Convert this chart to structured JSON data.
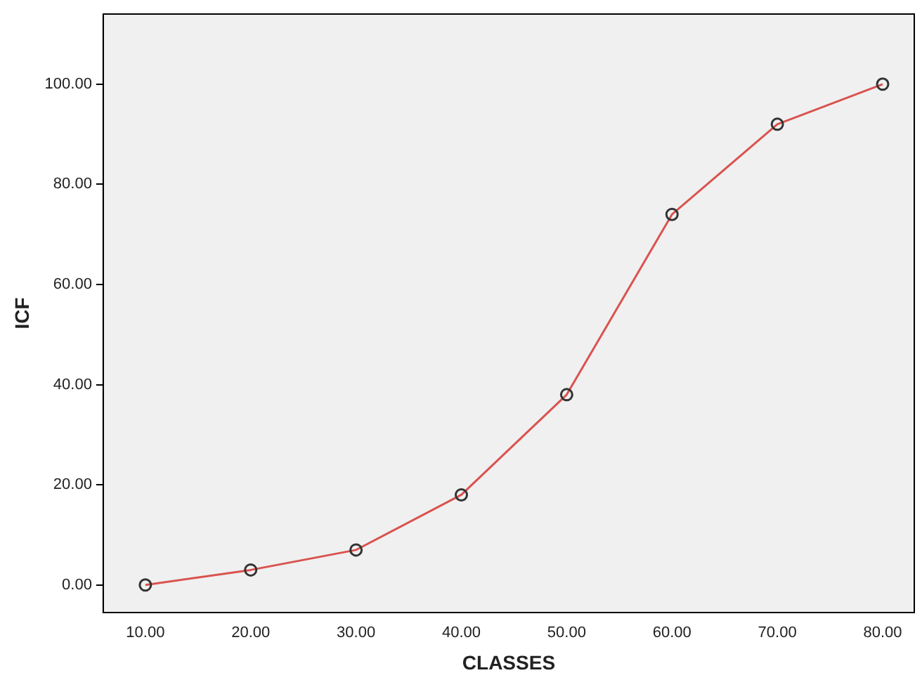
{
  "chart_data": {
    "type": "line",
    "xlabel": "CLASSES",
    "ylabel": "ICF",
    "x": [
      10,
      20,
      30,
      40,
      50,
      60,
      70,
      80
    ],
    "series": [
      {
        "color": "#d9534f",
        "values": [
          0,
          3,
          7,
          18,
          38,
          74,
          92,
          100
        ]
      }
    ],
    "xlim": [
      6,
      83
    ],
    "ylim": [
      -5.5,
      114
    ],
    "xticks": [
      {
        "value": 10,
        "label": "10.00"
      },
      {
        "value": 20,
        "label": "20.00"
      },
      {
        "value": 30,
        "label": "30.00"
      },
      {
        "value": 40,
        "label": "40.00"
      },
      {
        "value": 50,
        "label": "50.00"
      },
      {
        "value": 60,
        "label": "60.00"
      },
      {
        "value": 70,
        "label": "70.00"
      },
      {
        "value": 80,
        "label": "80.00"
      }
    ],
    "yticks": [
      {
        "value": 0,
        "label": "0.00"
      },
      {
        "value": 20,
        "label": "20.00"
      },
      {
        "value": 40,
        "label": "40.00"
      },
      {
        "value": 60,
        "label": "60.00"
      },
      {
        "value": 80,
        "label": "80.00"
      },
      {
        "value": 100,
        "label": "100.00"
      }
    ],
    "grid": false,
    "legend": false,
    "marker": "circle",
    "line_style": "solid"
  }
}
